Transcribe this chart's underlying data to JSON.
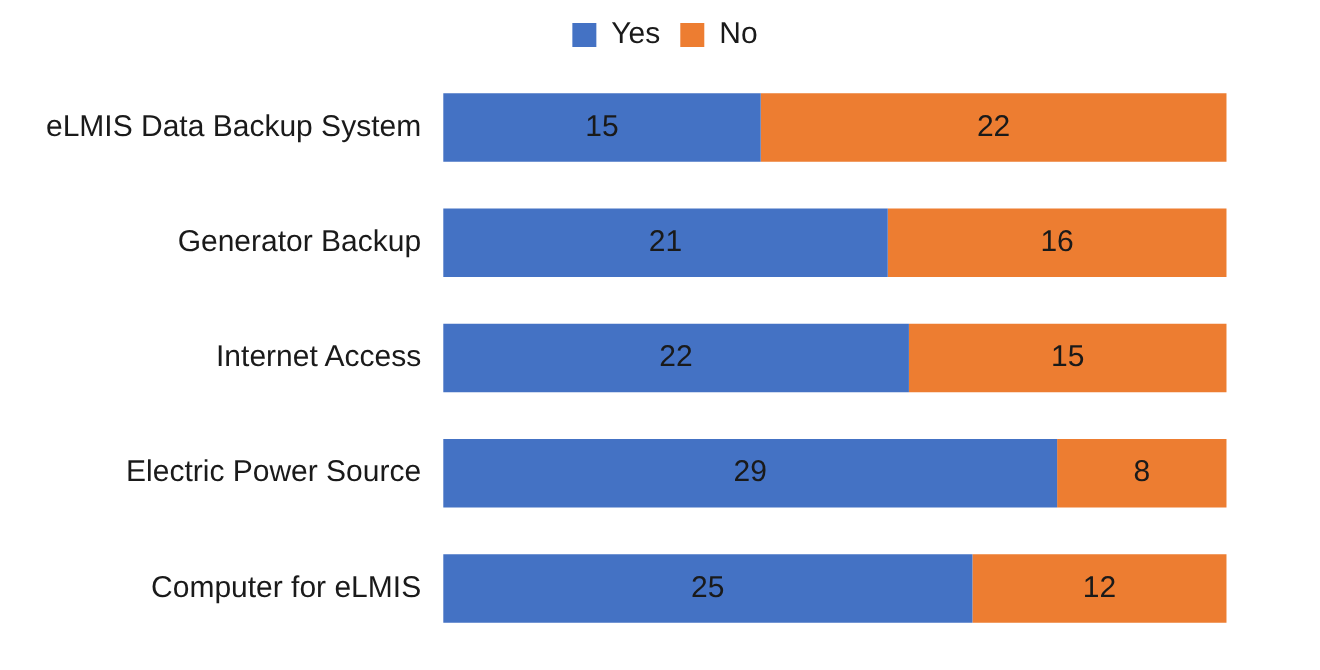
{
  "chart_data": {
    "type": "bar",
    "orientation": "horizontal",
    "stacked": true,
    "data_labels": true,
    "legend": "top",
    "categories": [
      "eLMIS Data Backup System",
      "Generator Backup",
      "Internet Access",
      "Electric Power Source",
      "Computer for eLMIS"
    ],
    "series": [
      {
        "name": "Yes",
        "color": "#4472c4",
        "values": [
          15,
          21,
          22,
          29,
          25
        ]
      },
      {
        "name": "No",
        "color": "#ed7d31",
        "values": [
          22,
          16,
          15,
          8,
          12
        ]
      }
    ]
  }
}
